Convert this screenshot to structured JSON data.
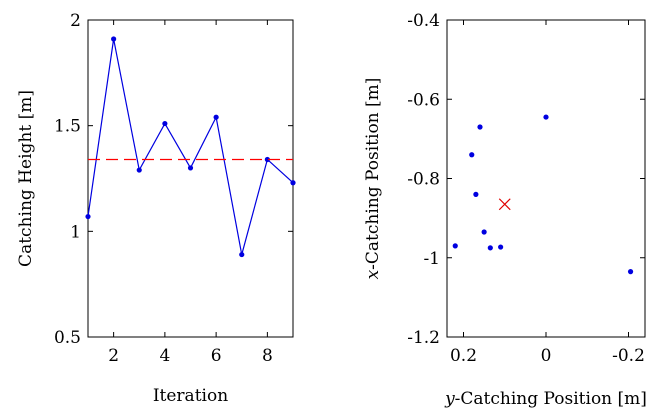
{
  "chart_data": [
    {
      "type": "line",
      "xlabel": "Iteration",
      "ylabel": "Catching Height [m]",
      "xlim": [
        1,
        9
      ],
      "ylim": [
        0.5,
        2
      ],
      "xticks": [
        2,
        4,
        6,
        8
      ],
      "yticks": [
        0.5,
        1,
        1.5,
        2
      ],
      "xtick_labels": [
        "2",
        "4",
        "6",
        "8"
      ],
      "ytick_labels": [
        "0.5",
        "1",
        "1.5",
        "2"
      ],
      "series": [
        {
          "color": "#0000e0",
          "style": "solid",
          "marker": "dot",
          "x": [
            1,
            2,
            3,
            4,
            5,
            6,
            7,
            8,
            9
          ],
          "y": [
            1.07,
            1.91,
            1.29,
            1.51,
            1.3,
            1.54,
            0.89,
            1.34,
            1.23
          ]
        },
        {
          "color": "#ff0000",
          "style": "dashed",
          "marker": "none",
          "x": [
            1,
            9
          ],
          "y": [
            1.34,
            1.34
          ]
        }
      ],
      "grid": false
    },
    {
      "type": "scatter",
      "xlabel": "y-Catching Position [m]",
      "xlabel_var": "y",
      "xlabel_rest": "-Catching Position [m]",
      "ylabel": "x-Catching Position [m]",
      "ylabel_var": "x",
      "ylabel_rest": "-Catching Position [m]",
      "xlim": [
        0.24,
        -0.24
      ],
      "x_axis_reversed": true,
      "ylim": [
        -1.2,
        -0.4
      ],
      "xticks": [
        0.2,
        0,
        -0.2
      ],
      "yticks": [
        -1.2,
        -1,
        -0.8,
        -0.6,
        -0.4
      ],
      "xtick_labels": [
        "0.2",
        "0",
        "-0.2"
      ],
      "ytick_labels": [
        "-1.2",
        "-1",
        "-0.8",
        "-0.6",
        "-0.4"
      ],
      "series": [
        {
          "color": "#0000e0",
          "marker": "dot",
          "points": [
            {
              "x": 0.22,
              "y": -0.97
            },
            {
              "x": 0.18,
              "y": -0.74
            },
            {
              "x": 0.16,
              "y": -0.67
            },
            {
              "x": 0.17,
              "y": -0.84
            },
            {
              "x": 0.15,
              "y": -0.935
            },
            {
              "x": 0.135,
              "y": -0.975
            },
            {
              "x": 0.11,
              "y": -0.973
            },
            {
              "x": 0.0,
              "y": -0.645
            },
            {
              "x": -0.205,
              "y": -1.035
            }
          ]
        },
        {
          "color": "#e00000",
          "marker": "x",
          "points": [
            {
              "x": 0.1,
              "y": -0.865
            }
          ]
        }
      ],
      "grid": false
    }
  ]
}
